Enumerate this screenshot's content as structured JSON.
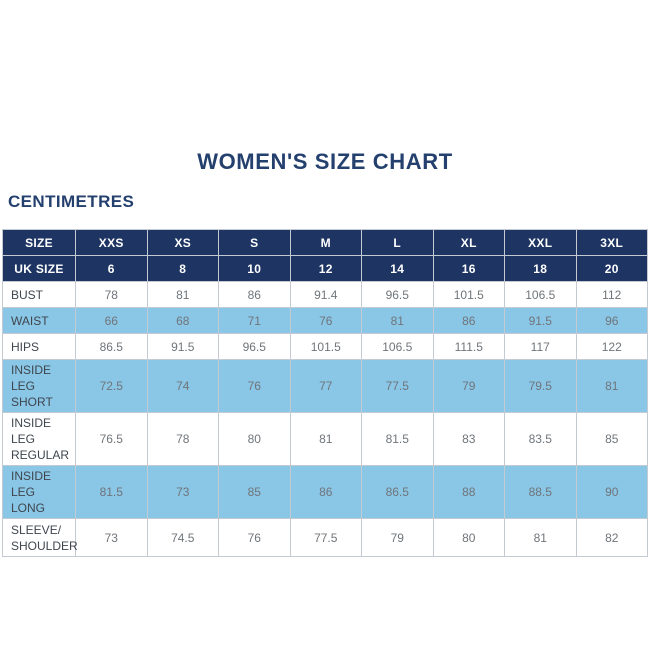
{
  "page": {
    "title": "WOMEN'S SIZE CHART",
    "unit_heading": "CENTIMETRES"
  },
  "colors": {
    "navy_header": "#1e3563",
    "title_navy": "#24406e",
    "shaded_row_blue": "#8ac6e6",
    "row_white": "#ffffff",
    "value_text": "#70757a",
    "label_text": "#3f464e",
    "border": "#c3cad1"
  },
  "chart_data": {
    "type": "table",
    "title": "WOMEN'S SIZE CHART",
    "unit": "CENTIMETRES",
    "columns": [
      "SIZE",
      "XXS",
      "XS",
      "S",
      "M",
      "L",
      "XL",
      "XXL",
      "3XL"
    ],
    "uk_size_label": "UK SIZE",
    "uk_sizes": [
      6,
      8,
      10,
      12,
      14,
      16,
      18,
      20
    ],
    "rows": [
      {
        "measurement": "BUST",
        "label_lines": [
          "BUST"
        ],
        "values": [
          78,
          81,
          86,
          91.4,
          96.5,
          101.5,
          106.5,
          112
        ]
      },
      {
        "measurement": "WAIST",
        "label_lines": [
          "WAIST"
        ],
        "values": [
          66,
          68,
          71,
          76,
          81,
          86,
          91.5,
          96
        ]
      },
      {
        "measurement": "HIPS",
        "label_lines": [
          "HIPS"
        ],
        "values": [
          86.5,
          91.5,
          96.5,
          101.5,
          106.5,
          111.5,
          117,
          122
        ]
      },
      {
        "measurement": "INSIDE LEG SHORT",
        "label_lines": [
          "INSIDE LEG",
          "SHORT"
        ],
        "values": [
          72.5,
          74,
          76,
          77,
          77.5,
          79,
          79.5,
          81
        ]
      },
      {
        "measurement": "INSIDE LEG REGULAR",
        "label_lines": [
          "INSIDE LEG",
          "REGULAR"
        ],
        "values": [
          76.5,
          78,
          80,
          81,
          81.5,
          83,
          83.5,
          85
        ]
      },
      {
        "measurement": "INSIDE LEG LONG",
        "label_lines": [
          "INSIDE LEG",
          "LONG"
        ],
        "values": [
          81.5,
          73,
          85,
          86,
          86.5,
          88,
          88.5,
          90
        ]
      },
      {
        "measurement": "SLEEVE/SHOULDER",
        "label_lines": [
          "SLEEVE/",
          "SHOULDER"
        ],
        "values": [
          73,
          74.5,
          76,
          77.5,
          79,
          80,
          81,
          82
        ]
      }
    ]
  }
}
